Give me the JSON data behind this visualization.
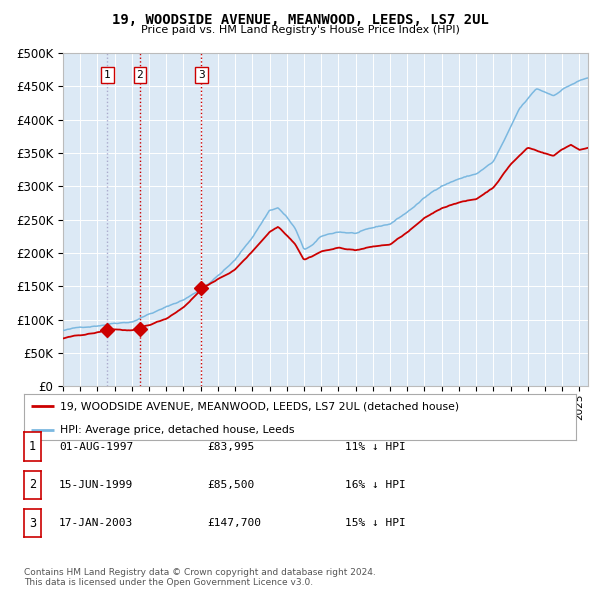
{
  "title": "19, WOODSIDE AVENUE, MEANWOOD, LEEDS, LS7 2UL",
  "subtitle": "Price paid vs. HM Land Registry's House Price Index (HPI)",
  "background_color": "#dce9f5",
  "plot_bg_color": "#dce9f5",
  "hpi_color": "#7bb8e0",
  "price_color": "#cc0000",
  "marker_color": "#cc0000",
  "vline_color_1": "#aaaacc",
  "vline_color_23": "#cc0000",
  "transactions": [
    {
      "label": "1",
      "date": 1997.583,
      "price": 83995
    },
    {
      "label": "2",
      "date": 1999.458,
      "price": 85500
    },
    {
      "label": "3",
      "date": 2003.042,
      "price": 147700
    }
  ],
  "table_rows": [
    {
      "num": "1",
      "date": "01-AUG-1997",
      "price": "£83,995",
      "pct": "11% ↓ HPI"
    },
    {
      "num": "2",
      "date": "15-JUN-1999",
      "price": "£85,500",
      "pct": "16% ↓ HPI"
    },
    {
      "num": "3",
      "date": "17-JAN-2003",
      "price": "£147,700",
      "pct": "15% ↓ HPI"
    }
  ],
  "legend_labels": [
    "19, WOODSIDE AVENUE, MEANWOOD, LEEDS, LS7 2UL (detached house)",
    "HPI: Average price, detached house, Leeds"
  ],
  "footer": "Contains HM Land Registry data © Crown copyright and database right 2024.\nThis data is licensed under the Open Government Licence v3.0.",
  "ylim": [
    0,
    500000
  ],
  "yticks": [
    0,
    50000,
    100000,
    150000,
    200000,
    250000,
    300000,
    350000,
    400000,
    450000,
    500000
  ],
  "xlim_start": 1995.0,
  "xlim_end": 2025.5
}
